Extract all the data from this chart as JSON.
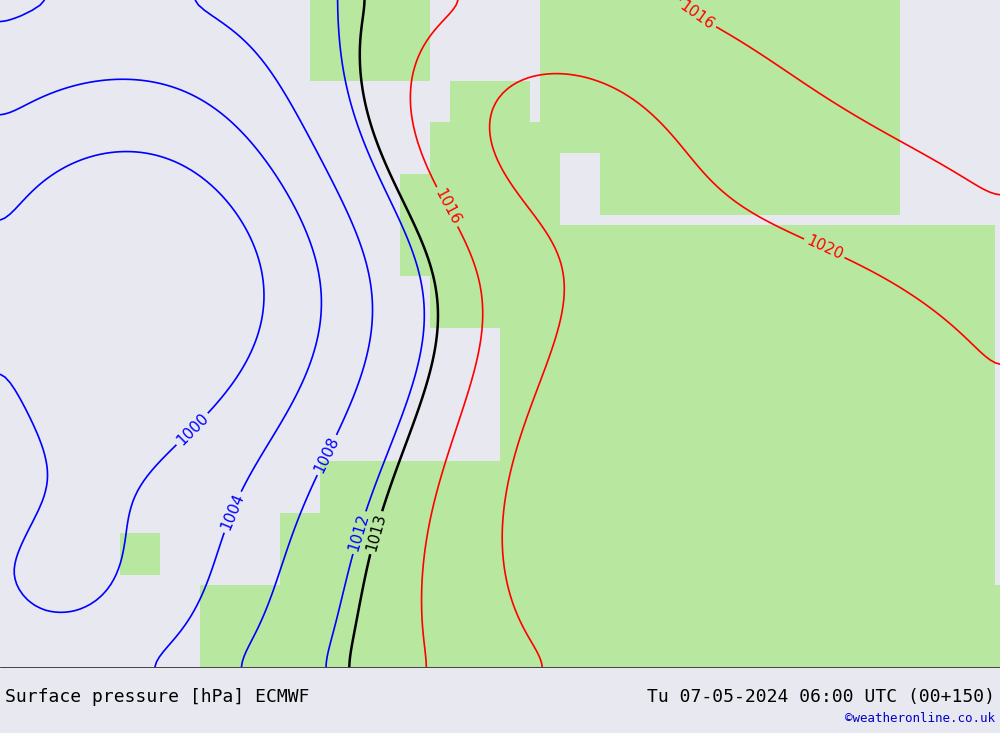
{
  "title_left": "Surface pressure [hPa] ECMWF",
  "title_right": "Tu 07-05-2024 06:00 UTC (00+150)",
  "copyright": "©weatheronline.co.uk",
  "background_ocean": "#e8e8f0",
  "background_land_green": "#b8e8a0",
  "background_land_gray": "#c8c8c8",
  "isobar_colors": {
    "blue": "#0000ff",
    "red": "#ff0000",
    "black": "#000000"
  },
  "footer_bg": "#d8d8d8",
  "figsize": [
    10.0,
    7.33
  ],
  "dpi": 100
}
